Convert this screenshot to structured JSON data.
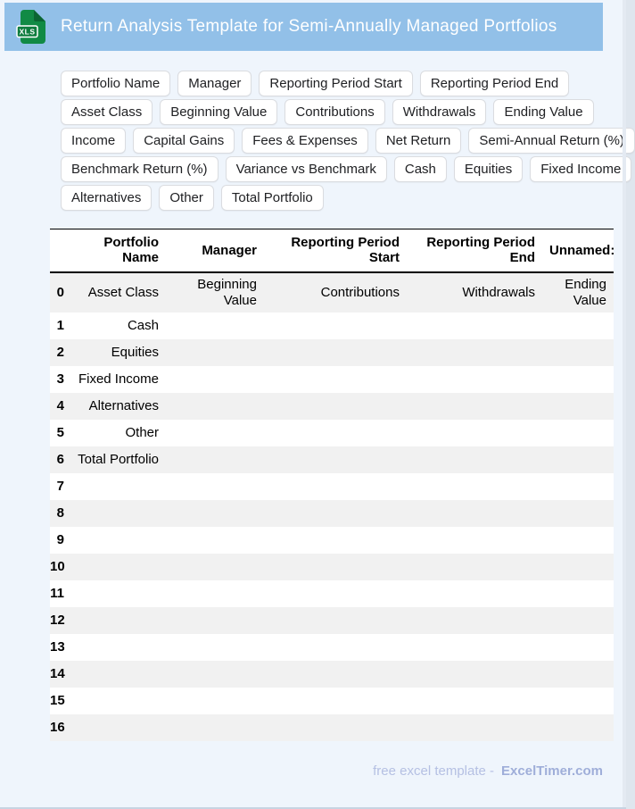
{
  "colors": {
    "header_bg": "#92C0E8",
    "page_bg": "#EFF5FC",
    "icon_green": "#118A45",
    "row_stripe": "#F1F1F1",
    "footer_text": "#B5C0E3"
  },
  "header": {
    "title": "Return Analysis Template for Semi-Annually Managed Portfolios",
    "icon_label": "XLS"
  },
  "chips": {
    "rows": [
      [
        "Portfolio Name",
        "Manager",
        "Reporting Period Start",
        "Reporting Period End"
      ],
      [
        "Asset Class",
        "Beginning Value",
        "Contributions",
        "Withdrawals",
        "Ending Value"
      ],
      [
        "Income",
        "Capital Gains",
        "Fees & Expenses",
        "Net Return",
        "Semi-Annual Return (%)"
      ],
      [
        "Benchmark Return (%)",
        "Variance vs Benchmark",
        "Cash",
        "Equities",
        "Fixed Income"
      ],
      [
        "Alternatives",
        "Other",
        "Total Portfolio"
      ]
    ]
  },
  "table": {
    "columns": [
      "",
      "Portfolio Name",
      "Manager",
      "Reporting Period Start",
      "Reporting Period End",
      "Unnamed:"
    ],
    "rows": [
      {
        "index": "0",
        "cells": [
          "Asset Class",
          "Beginning Value",
          "Contributions",
          "Withdrawals",
          "Ending Value"
        ]
      },
      {
        "index": "1",
        "cells": [
          "Cash",
          "",
          "",
          "",
          ""
        ]
      },
      {
        "index": "2",
        "cells": [
          "Equities",
          "",
          "",
          "",
          ""
        ]
      },
      {
        "index": "3",
        "cells": [
          "Fixed Income",
          "",
          "",
          "",
          ""
        ]
      },
      {
        "index": "4",
        "cells": [
          "Alternatives",
          "",
          "",
          "",
          ""
        ]
      },
      {
        "index": "5",
        "cells": [
          "Other",
          "",
          "",
          "",
          ""
        ]
      },
      {
        "index": "6",
        "cells": [
          "Total Portfolio",
          "",
          "",
          "",
          ""
        ]
      },
      {
        "index": "7",
        "cells": [
          "",
          "",
          "",
          "",
          ""
        ]
      },
      {
        "index": "8",
        "cells": [
          "",
          "",
          "",
          "",
          ""
        ]
      },
      {
        "index": "9",
        "cells": [
          "",
          "",
          "",
          "",
          ""
        ]
      },
      {
        "index": "10",
        "cells": [
          "",
          "",
          "",
          "",
          ""
        ]
      },
      {
        "index": "11",
        "cells": [
          "",
          "",
          "",
          "",
          ""
        ]
      },
      {
        "index": "12",
        "cells": [
          "",
          "",
          "",
          "",
          ""
        ]
      },
      {
        "index": "13",
        "cells": [
          "",
          "",
          "",
          "",
          ""
        ]
      },
      {
        "index": "14",
        "cells": [
          "",
          "",
          "",
          "",
          ""
        ]
      },
      {
        "index": "15",
        "cells": [
          "",
          "",
          "",
          "",
          ""
        ]
      },
      {
        "index": "16",
        "cells": [
          "",
          "",
          "",
          "",
          ""
        ]
      }
    ]
  },
  "footer": {
    "text": "free excel template -",
    "brand": "ExcelTimer.com"
  }
}
